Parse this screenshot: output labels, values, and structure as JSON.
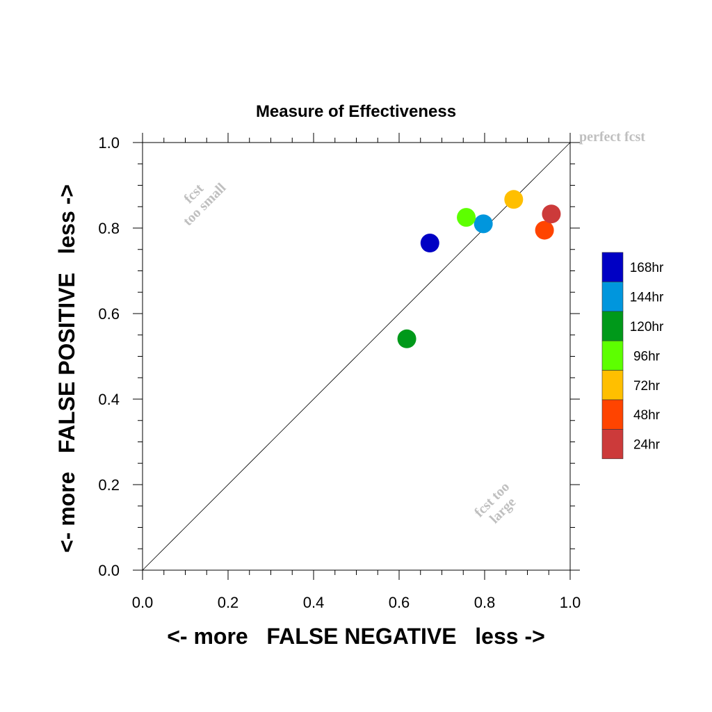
{
  "chart_data": {
    "type": "scatter",
    "title": "Measure of Effectiveness",
    "xlabel": "<- more   FALSE NEGATIVE   less ->",
    "ylabel": "<- more   FALSE POSITIVE   less ->",
    "xlim": [
      0,
      1
    ],
    "ylim": [
      0,
      1
    ],
    "xticks": [
      "0.0",
      "0.2",
      "0.4",
      "0.6",
      "0.8",
      "1.0"
    ],
    "yticks": [
      "0.0",
      "0.2",
      "0.4",
      "0.6",
      "0.8",
      "1.0"
    ],
    "grid": false,
    "diagonal_line": true,
    "annotations": {
      "perfect": "perfect fcst",
      "small_line1": "fcst",
      "small_line2": "too small",
      "large_line1": "fcst too",
      "large_line2": "large"
    },
    "legend_placement": "right",
    "series": [
      {
        "name": "168hr",
        "color": "#0000c4",
        "x": [
          0.672
        ],
        "y": [
          0.765
        ]
      },
      {
        "name": "144hr",
        "color": "#0096dd",
        "x": [
          0.797
        ],
        "y": [
          0.81
        ]
      },
      {
        "name": "120hr",
        "color": "#00991a",
        "x": [
          0.618
        ],
        "y": [
          0.541
        ]
      },
      {
        "name": "96hr",
        "color": "#5dff00",
        "x": [
          0.757
        ],
        "y": [
          0.825
        ]
      },
      {
        "name": "72hr",
        "color": "#ffbf00",
        "x": [
          0.868
        ],
        "y": [
          0.867
        ]
      },
      {
        "name": "48hr",
        "color": "#ff4400",
        "x": [
          0.94
        ],
        "y": [
          0.795
        ]
      },
      {
        "name": "24hr",
        "color": "#cc3a3a",
        "x": [
          0.956
        ],
        "y": [
          0.833
        ]
      }
    ]
  }
}
